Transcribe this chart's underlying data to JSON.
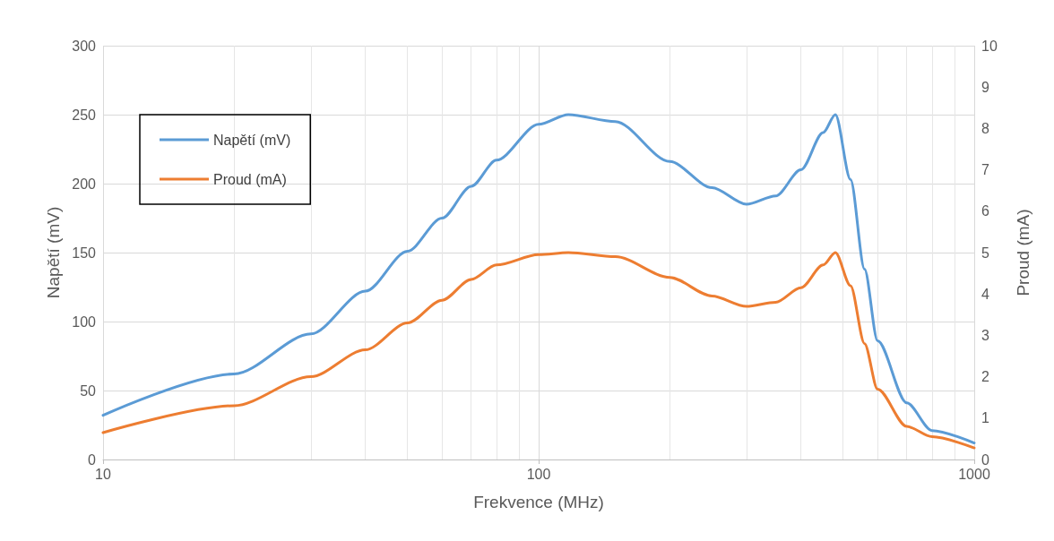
{
  "chart_data": {
    "type": "line",
    "xlabel": "Frekvence (MHz)",
    "ylabel": "Napětí (mV)",
    "y2label": "Proud (mA)",
    "x": [
      10,
      20,
      30,
      40,
      50,
      60,
      70,
      80,
      100,
      117,
      150,
      200,
      250,
      300,
      350,
      400,
      450,
      480,
      520,
      560,
      600,
      700,
      800,
      1000
    ],
    "series": [
      {
        "name": "Napětí (mV)",
        "color": "#5b9bd5",
        "values": [
          32,
          62,
          91,
          122,
          151,
          175,
          198,
          217,
          243,
          250,
          245,
          216,
          197,
          185,
          191,
          210,
          237,
          250,
          203,
          138,
          86,
          41,
          21,
          12
        ]
      },
      {
        "name": "Proud (mA)",
        "color": "#ed7d31",
        "axis": "y2",
        "values": [
          0.65,
          1.3,
          2.0,
          2.65,
          3.3,
          3.85,
          4.35,
          4.7,
          4.95,
          5.0,
          4.9,
          4.4,
          3.95,
          3.7,
          3.8,
          4.15,
          4.7,
          5.0,
          4.2,
          2.8,
          1.7,
          0.8,
          0.55,
          0.28
        ]
      }
    ],
    "log": "x",
    "xlim": [
      10,
      1000
    ],
    "xticks": [
      10,
      100,
      1000
    ],
    "ylim": [
      0,
      300
    ],
    "yticks": [
      0,
      50,
      100,
      150,
      200,
      250,
      300
    ],
    "y2lim": [
      0,
      10
    ],
    "y2ticks": [
      0,
      1,
      2,
      3,
      4,
      5,
      6,
      7,
      8,
      9,
      10
    ],
    "grid": true,
    "legend": "top left",
    "marker": "none",
    "line_style": "solid"
  }
}
